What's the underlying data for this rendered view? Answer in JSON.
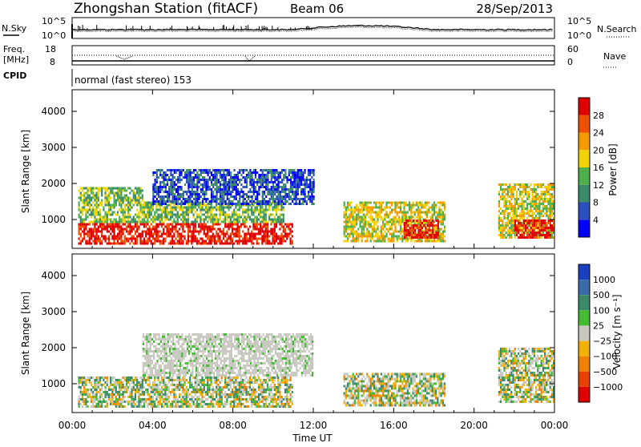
{
  "header": {
    "station": "Zhongshan Station (fitACF)",
    "beam": "Beam 06",
    "date": "28/Sep/2013"
  },
  "top_panels": {
    "nsky_label": "N.Sky",
    "nsearch_label": "N.Search",
    "noise_ticks_left": [
      "10^5",
      "10^0"
    ],
    "noise_ticks_right": [
      "10^5",
      "10^0"
    ],
    "freq_label_line1": "Freq.",
    "freq_label_line2": "[MHz]",
    "freq_ticks": [
      "18",
      "8"
    ],
    "nave_ticks": [
      "60",
      "0"
    ],
    "nave_label": "Nave",
    "cpid_label": "CPID",
    "cpid_text": "normal (fast stereo) 153"
  },
  "chart_data": [
    {
      "type": "heatmap",
      "name": "power-panel",
      "ylabel": "Slant Range [km]",
      "yticks": [
        "1000",
        "2000",
        "3000",
        "4000"
      ],
      "ylim": [
        200,
        4600
      ],
      "colorbar_label": "Power [dB]",
      "colorbar_ticks": [
        "4",
        "8",
        "12",
        "16",
        "20",
        "24",
        "28"
      ],
      "colorbar_colors": [
        "#0000ff",
        "#2a4fbf",
        "#3a8a6a",
        "#4db04a",
        "#f2d200",
        "#f29a00",
        "#ee5000",
        "#e00000"
      ],
      "regions": [
        {
          "t0": 0.3,
          "t1": 11.0,
          "r0": 350,
          "r1": 900,
          "level": 7
        },
        {
          "t0": 0.3,
          "t1": 10.5,
          "r0": 900,
          "r1": 1500,
          "level": 3
        },
        {
          "t0": 0.3,
          "t1": 3.5,
          "r0": 1500,
          "r1": 1900,
          "level": 3
        },
        {
          "t0": 4.0,
          "t1": 12.0,
          "r0": 1400,
          "r1": 2400,
          "level": 1
        },
        {
          "t0": 13.5,
          "t1": 18.5,
          "r0": 400,
          "r1": 1500,
          "level": 4
        },
        {
          "t0": 16.5,
          "t1": 18.2,
          "r0": 500,
          "r1": 1000,
          "level": 7
        },
        {
          "t0": 21.2,
          "t1": 24.0,
          "r0": 500,
          "r1": 2000,
          "level": 4
        },
        {
          "t0": 22.0,
          "t1": 24.0,
          "r0": 500,
          "r1": 1000,
          "level": 7
        }
      ]
    },
    {
      "type": "heatmap",
      "name": "velocity-panel",
      "ylabel": "Slant Range [km]",
      "yticks": [
        "1000",
        "2000",
        "3000",
        "4000"
      ],
      "ylim": [
        200,
        4600
      ],
      "colorbar_label": "Velocity [m s^-1]",
      "colorbar_ticks": [
        "1000",
        "500",
        "100",
        "25",
        "-25",
        "-100",
        "-500",
        "-1000"
      ],
      "colorbar_colors": [
        "#1a3fc0",
        "#3a6aa8",
        "#3a8a6a",
        "#44bb33",
        "#c8c8c0",
        "#f2b000",
        "#f08000",
        "#e84000",
        "#e00000"
      ],
      "regions": [
        {
          "t0": 0.3,
          "t1": 11.0,
          "r0": 350,
          "r1": 1200,
          "level": "mixed"
        },
        {
          "t0": 3.5,
          "t1": 12.0,
          "r0": 1200,
          "r1": 2400,
          "level": "grey"
        },
        {
          "t0": 13.5,
          "t1": 18.5,
          "r0": 400,
          "r1": 1300,
          "level": "mixed"
        },
        {
          "t0": 21.2,
          "t1": 24.0,
          "r0": 500,
          "r1": 2000,
          "level": "mixed"
        }
      ],
      "xticks": [
        "00:00",
        "04:00",
        "08:00",
        "12:00",
        "16:00",
        "20:00",
        "00:00"
      ],
      "xlabel": "Time UT",
      "xlim": [
        0,
        24
      ]
    }
  ]
}
